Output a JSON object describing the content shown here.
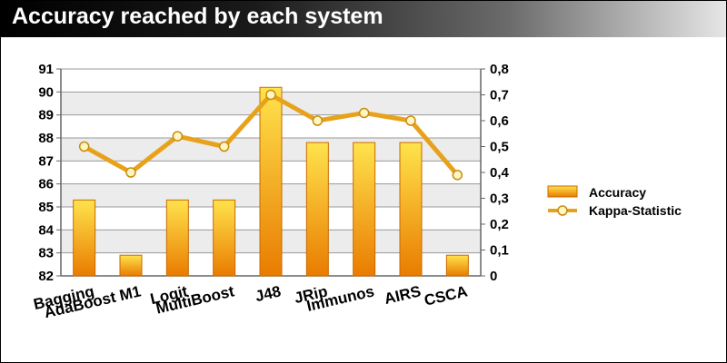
{
  "title": "Accuracy reached by each system",
  "colors": {
    "bar_light": "#ffe34d",
    "bar_dark": "#e97c00",
    "line": "#e8a21a",
    "marker_fill": "#fff7c2",
    "band": "#ececec"
  },
  "chart_data": {
    "type": "bar",
    "categories": [
      "Bagging",
      "AdaBoost M1",
      "Logit",
      "MultiBoost",
      "J48",
      "JRip",
      "Immunos",
      "AIRS",
      "CSCA"
    ],
    "series": [
      {
        "name": "Accuracy",
        "type": "bar",
        "axis": "left",
        "values": [
          85.3,
          82.9,
          85.3,
          85.3,
          90.2,
          87.8,
          87.8,
          87.8,
          82.9
        ]
      },
      {
        "name": "Kappa-Statistic",
        "type": "line",
        "axis": "right",
        "values": [
          0.5,
          0.4,
          0.54,
          0.5,
          0.7,
          0.6,
          0.63,
          0.6,
          0.39
        ]
      }
    ],
    "y_left": {
      "min": 82,
      "max": 91,
      "ticks": [
        "82",
        "83",
        "84",
        "85",
        "86",
        "87",
        "88",
        "89",
        "90",
        "91"
      ]
    },
    "y_right": {
      "min": 0,
      "max": 0.8,
      "ticks": [
        "0",
        "0,1",
        "0,2",
        "0,3",
        "0,4",
        "0,5",
        "0,6",
        "0,7",
        "0,8"
      ]
    },
    "grid": true,
    "legend": "right"
  }
}
